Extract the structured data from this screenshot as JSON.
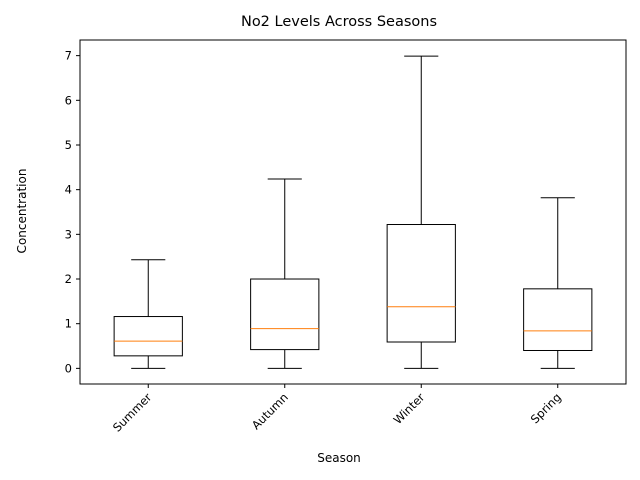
{
  "chart_data": {
    "type": "box",
    "title": "No2 Levels Across Seasons",
    "xlabel": "Season",
    "ylabel": "Concentration",
    "categories": [
      "Summer",
      "Autumn",
      "Winter",
      "Spring"
    ],
    "boxes": [
      {
        "whisker_low": 0.0,
        "q1": 0.28,
        "median": 0.61,
        "q3": 1.16,
        "whisker_high": 2.43
      },
      {
        "whisker_low": 0.0,
        "q1": 0.42,
        "median": 0.89,
        "q3": 2.0,
        "whisker_high": 4.24
      },
      {
        "whisker_low": 0.0,
        "q1": 0.59,
        "median": 1.38,
        "q3": 3.22,
        "whisker_high": 6.99
      },
      {
        "whisker_low": 0.0,
        "q1": 0.4,
        "median": 0.84,
        "q3": 1.78,
        "whisker_high": 3.82
      }
    ],
    "yticks": [
      "0",
      "1",
      "2",
      "3",
      "4",
      "5",
      "6",
      "7"
    ],
    "ylim": [
      -0.35,
      7.35
    ],
    "grid": false,
    "colors": {
      "box": "#000000",
      "median": "#ff7f0e"
    }
  }
}
